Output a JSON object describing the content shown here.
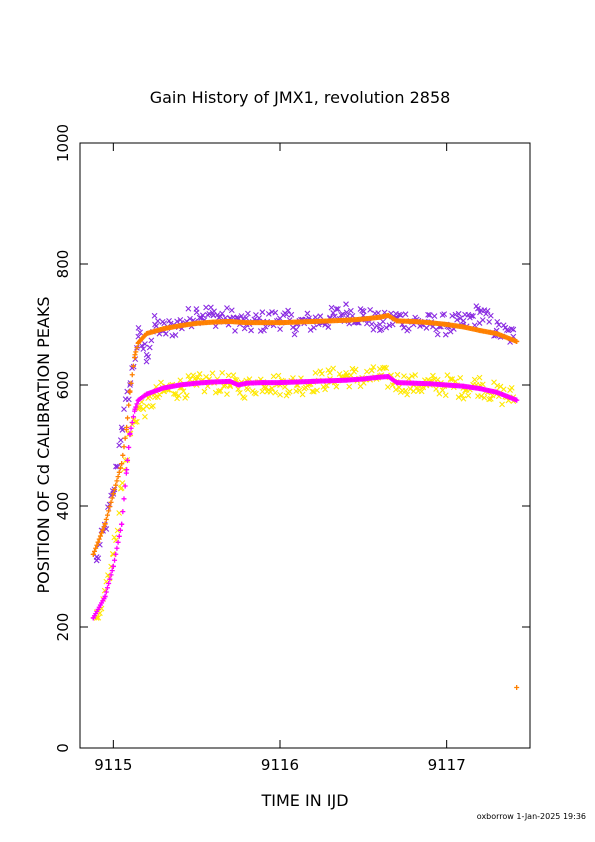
{
  "chart_data": {
    "type": "scatter",
    "title": "Gain History of JMX1, revolution 2858",
    "xlabel": "TIME IN IJD",
    "ylabel": "POSITION OF Cd CALIBRATION PEAKS",
    "xlim": [
      9114.8,
      9117.5
    ],
    "ylim": [
      0,
      1000
    ],
    "x_ticks": [
      9115,
      9116,
      9117
    ],
    "x_tick_labels": [
      "9115",
      "9116",
      "9117"
    ],
    "y_ticks": [
      0,
      200,
      400,
      600,
      800,
      1000
    ],
    "y_tick_labels": [
      "0",
      "200",
      "400",
      "600",
      "800",
      "1000"
    ],
    "grid": false,
    "series": [
      {
        "marker": "x",
        "color": "#8A2BE2",
        "x": [
          9114.9,
          9115.0,
          9115.05,
          9115.1,
          9115.15,
          9115.2,
          9115.25,
          9115.3,
          9115.4,
          9115.5,
          9115.6,
          9115.7,
          9115.8,
          9115.9,
          9116.0,
          9116.1,
          9116.2,
          9116.3,
          9116.4,
          9116.5,
          9116.6,
          9116.7,
          9116.8,
          9116.9,
          9117.0,
          9117.1,
          9117.2,
          9117.3,
          9117.4
        ],
        "y": [
          310,
          420,
          530,
          600,
          680,
          650,
          700,
          690,
          700,
          720,
          715,
          710,
          700,
          705,
          710,
          700,
          705,
          710,
          720,
          715,
          700,
          710,
          705,
          700,
          700,
          700,
          720,
          690,
          680
        ]
      },
      {
        "marker": "x",
        "color": "#FFE800",
        "x": [
          9114.9,
          9115.0,
          9115.05,
          9115.1,
          9115.15,
          9115.2,
          9115.25,
          9115.3,
          9115.4,
          9115.5,
          9115.6,
          9115.7,
          9115.8,
          9115.9,
          9116.0,
          9116.1,
          9116.2,
          9116.3,
          9116.4,
          9116.5,
          9116.6,
          9116.7,
          9116.8,
          9116.9,
          9117.0,
          9117.1,
          9117.2,
          9117.3,
          9117.4
        ],
        "y": [
          215,
          320,
          430,
          520,
          560,
          565,
          580,
          590,
          595,
          600,
          605,
          600,
          595,
          605,
          600,
          600,
          605,
          610,
          615,
          610,
          615,
          605,
          600,
          600,
          600,
          595,
          600,
          585,
          580
        ]
      },
      {
        "marker": "+",
        "color": "#FF8000",
        "x": [
          9114.88,
          9114.95,
          9115.0,
          9115.05,
          9115.08,
          9115.1,
          9115.13,
          9115.15,
          9115.2,
          9115.3,
          9115.4,
          9115.5,
          9115.6,
          9115.7,
          9115.8,
          9115.9,
          9116.0,
          9116.1,
          9116.2,
          9116.3,
          9116.4,
          9116.5,
          9116.6,
          9116.65,
          9116.7,
          9116.8,
          9116.9,
          9117.0,
          9117.1,
          9117.2,
          9117.3,
          9117.42
        ],
        "y": [
          320,
          370,
          420,
          470,
          530,
          590,
          650,
          670,
          685,
          693,
          698,
          702,
          704,
          705,
          703,
          703,
          703,
          704,
          705,
          706,
          707,
          709,
          712,
          715,
          706,
          705,
          703,
          700,
          696,
          690,
          685,
          672
        ],
        "outliers_x": [
          9117.42
        ],
        "outliers_y": [
          100
        ]
      },
      {
        "marker": "+",
        "color": "#FF00FF",
        "x": [
          9114.88,
          9114.95,
          9115.0,
          9115.05,
          9115.08,
          9115.1,
          9115.13,
          9115.15,
          9115.2,
          9115.3,
          9115.4,
          9115.5,
          9115.6,
          9115.7,
          9115.75,
          9115.8,
          9115.9,
          9116.0,
          9116.1,
          9116.2,
          9116.3,
          9116.4,
          9116.5,
          9116.6,
          9116.65,
          9116.7,
          9116.8,
          9116.9,
          9117.0,
          9117.1,
          9117.2,
          9117.3,
          9117.42
        ],
        "y": [
          215,
          250,
          300,
          370,
          460,
          520,
          560,
          575,
          585,
          595,
          600,
          603,
          605,
          606,
          600,
          603,
          604,
          604,
          605,
          606,
          607,
          608,
          610,
          613,
          614,
          604,
          603,
          602,
          600,
          598,
          594,
          588,
          575
        ]
      }
    ]
  },
  "footer": {
    "stamp": "oxborrow  1-Jan-2025 19:36"
  }
}
